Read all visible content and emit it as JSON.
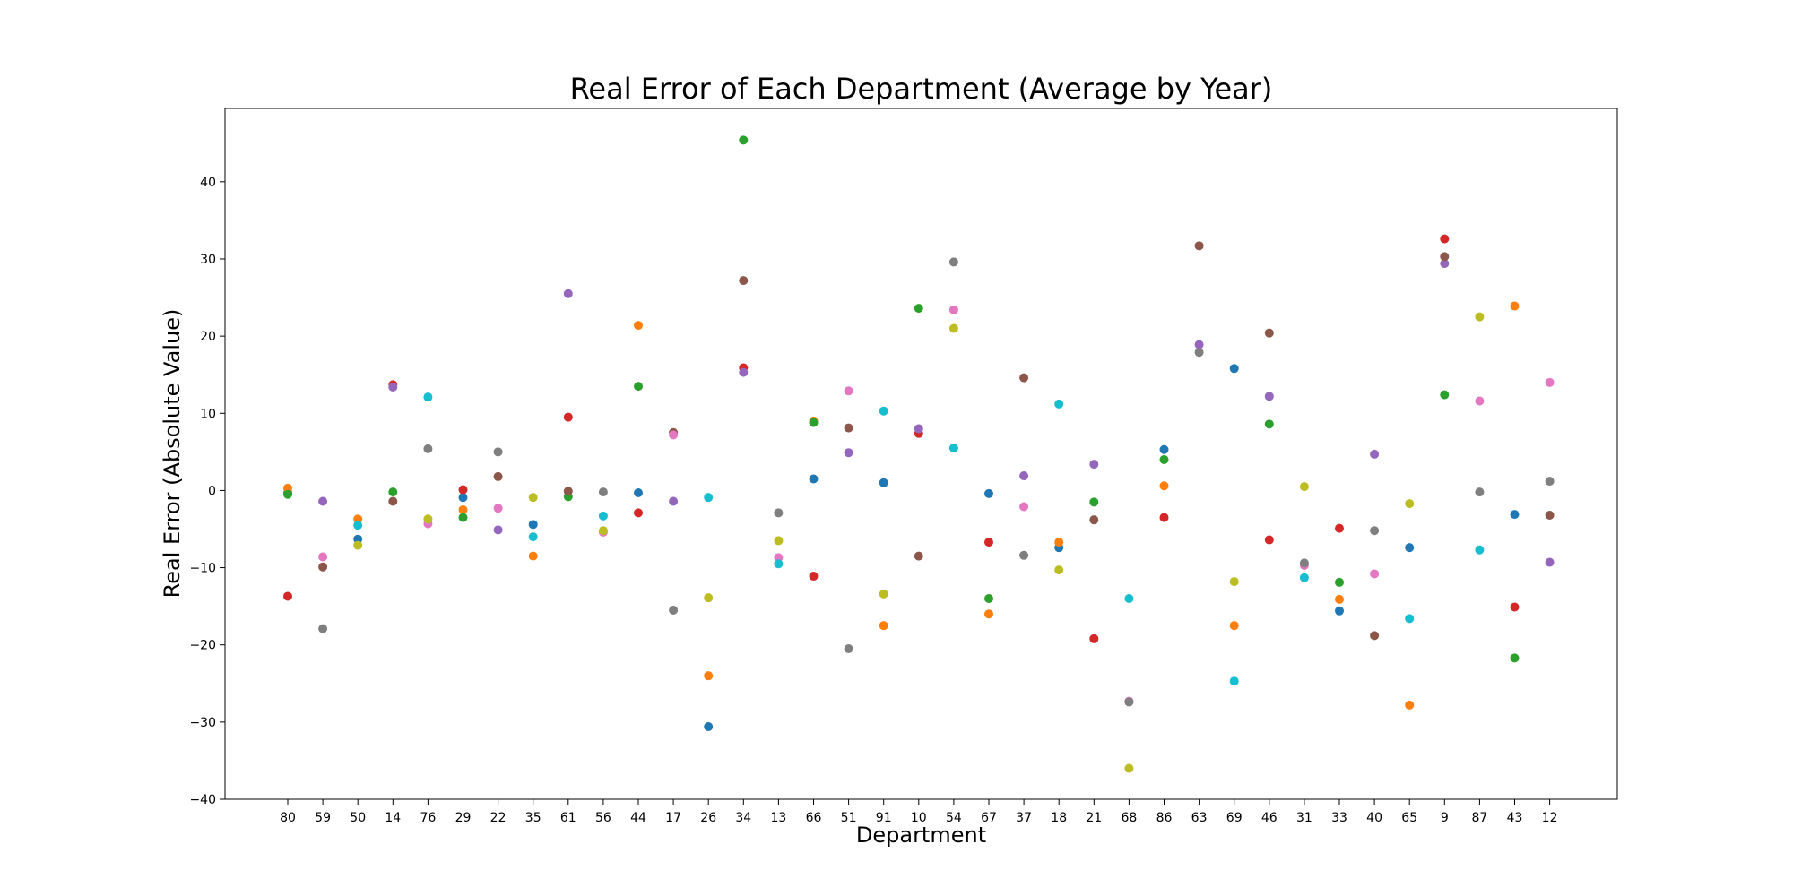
{
  "chart_data": {
    "type": "scatter",
    "title": "Real Error of Each Department (Average by Year)",
    "xlabel": "Department",
    "ylabel": "Real Error (Absolute Value)",
    "ylim": [
      -40,
      49.5
    ],
    "y_ticks": [
      -40,
      -30,
      -20,
      -10,
      0,
      10,
      20,
      30,
      40
    ],
    "categories": [
      "80",
      "59",
      "50",
      "14",
      "76",
      "29",
      "22",
      "35",
      "61",
      "56",
      "44",
      "17",
      "26",
      "34",
      "13",
      "66",
      "51",
      "91",
      "10",
      "54",
      "67",
      "37",
      "18",
      "21",
      "68",
      "86",
      "63",
      "69",
      "46",
      "31",
      "33",
      "40",
      "65",
      "9",
      "87",
      "43",
      "12"
    ],
    "grid": false,
    "legend": "none",
    "series": [
      {
        "color": "#1f77b4",
        "values": [
          -0.3,
          null,
          -6.3,
          null,
          null,
          -0.9,
          null,
          -4.4,
          null,
          null,
          -0.3,
          null,
          -30.6,
          null,
          null,
          1.5,
          null,
          1.0,
          null,
          null,
          -0.4,
          null,
          -7.4,
          null,
          null,
          5.3,
          null,
          15.8,
          null,
          null,
          -15.6,
          null,
          -7.4,
          null,
          null,
          -3.1,
          null
        ]
      },
      {
        "color": "#ff7f0e",
        "values": [
          0.3,
          null,
          -3.7,
          null,
          null,
          -2.5,
          null,
          -8.5,
          null,
          null,
          21.4,
          null,
          -24.0,
          null,
          null,
          9.0,
          null,
          -17.5,
          null,
          null,
          -16.0,
          null,
          -6.7,
          null,
          null,
          0.6,
          null,
          -17.5,
          null,
          null,
          -14.1,
          null,
          -27.8,
          null,
          null,
          23.9,
          null
        ]
      },
      {
        "color": "#2ca02c",
        "values": [
          -0.5,
          null,
          null,
          -0.2,
          null,
          -3.5,
          null,
          null,
          -0.8,
          null,
          13.5,
          null,
          null,
          45.4,
          null,
          8.8,
          null,
          null,
          23.6,
          null,
          -14.0,
          null,
          null,
          -1.5,
          null,
          4.0,
          null,
          null,
          8.6,
          null,
          -11.9,
          null,
          null,
          12.4,
          null,
          -21.7,
          null
        ]
      },
      {
        "color": "#d62728",
        "values": [
          -13.7,
          null,
          null,
          13.7,
          null,
          0.1,
          null,
          null,
          9.5,
          null,
          -2.9,
          null,
          null,
          15.9,
          null,
          -11.1,
          null,
          null,
          7.4,
          null,
          -6.7,
          null,
          null,
          -19.2,
          null,
          -3.5,
          null,
          null,
          -6.4,
          null,
          -4.9,
          null,
          null,
          32.6,
          null,
          -15.1,
          null
        ]
      },
      {
        "color": "#9467bd",
        "values": [
          null,
          -1.4,
          null,
          13.4,
          null,
          null,
          -5.1,
          null,
          25.5,
          null,
          null,
          -1.4,
          null,
          15.3,
          null,
          null,
          4.9,
          null,
          8.0,
          null,
          null,
          1.9,
          null,
          3.4,
          null,
          null,
          18.9,
          null,
          12.2,
          null,
          null,
          4.7,
          null,
          29.4,
          null,
          null,
          -9.3
        ]
      },
      {
        "color": "#8c564b",
        "values": [
          null,
          -9.9,
          null,
          -1.4,
          null,
          null,
          1.8,
          null,
          -0.1,
          null,
          null,
          7.5,
          null,
          27.2,
          null,
          null,
          8.1,
          null,
          -8.5,
          null,
          null,
          14.6,
          null,
          -3.8,
          null,
          null,
          31.7,
          null,
          20.4,
          null,
          null,
          -18.8,
          null,
          30.3,
          null,
          null,
          -3.2
        ]
      },
      {
        "color": "#e377c2",
        "values": [
          null,
          -8.6,
          null,
          null,
          -4.3,
          null,
          -2.3,
          null,
          null,
          -5.4,
          null,
          7.2,
          null,
          null,
          -8.7,
          null,
          12.9,
          null,
          null,
          23.4,
          null,
          -2.1,
          null,
          null,
          -27.3,
          null,
          null,
          null,
          null,
          -9.7,
          null,
          -10.8,
          null,
          null,
          11.6,
          null,
          14.0
        ]
      },
      {
        "color": "#7f7f7f",
        "values": [
          null,
          -17.9,
          null,
          null,
          5.4,
          null,
          5.0,
          null,
          null,
          -0.2,
          null,
          -15.5,
          null,
          null,
          -2.9,
          null,
          -20.5,
          null,
          null,
          29.6,
          null,
          -8.4,
          null,
          null,
          -27.4,
          null,
          17.9,
          null,
          null,
          -9.4,
          null,
          -5.2,
          null,
          null,
          -0.2,
          null,
          1.2
        ]
      },
      {
        "color": "#bcbd22",
        "values": [
          null,
          null,
          -7.1,
          null,
          -3.7,
          null,
          null,
          -0.9,
          null,
          -5.2,
          null,
          null,
          -13.9,
          null,
          -6.5,
          null,
          null,
          -13.4,
          null,
          21.0,
          null,
          null,
          -10.3,
          null,
          -36.0,
          null,
          null,
          -11.8,
          null,
          0.5,
          null,
          null,
          -1.7,
          null,
          22.5,
          null,
          null
        ]
      },
      {
        "color": "#17becf",
        "values": [
          null,
          null,
          -4.5,
          null,
          12.1,
          null,
          null,
          -6.0,
          null,
          -3.3,
          null,
          null,
          -0.9,
          null,
          -9.5,
          null,
          null,
          10.3,
          null,
          5.5,
          null,
          null,
          11.2,
          null,
          -14.0,
          null,
          null,
          -24.7,
          null,
          -11.3,
          null,
          null,
          -16.6,
          null,
          -7.7,
          null,
          null
        ]
      }
    ]
  }
}
